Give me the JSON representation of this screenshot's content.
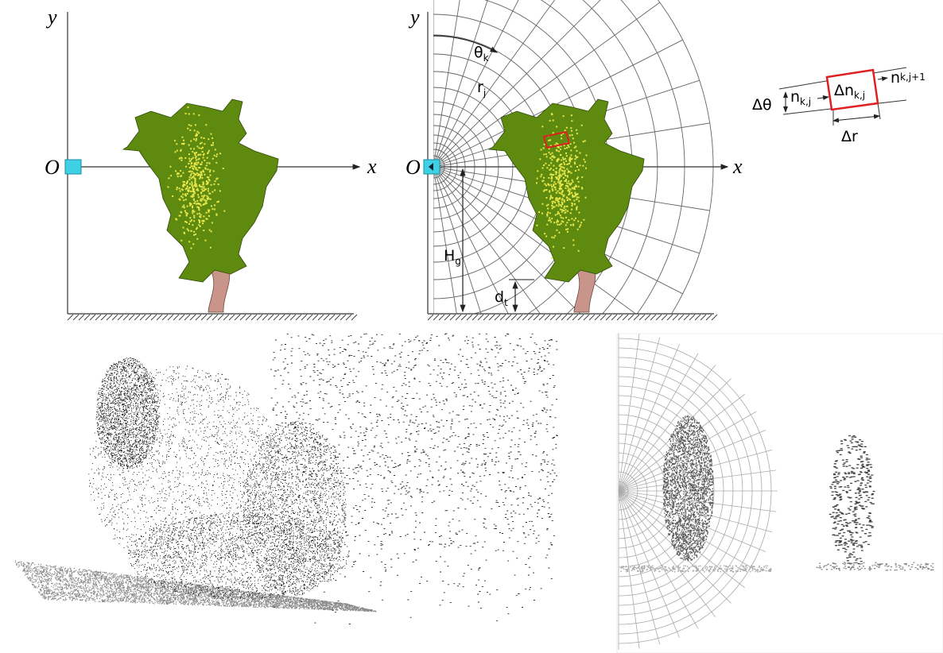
{
  "panel_a": {
    "axis_y": "y",
    "axis_x": "x",
    "origin": "O"
  },
  "panel_b": {
    "axis_y": "y",
    "axis_x": "x",
    "origin": "O",
    "theta": "θ",
    "theta_sub": "k",
    "r": "r",
    "r_sub": "j",
    "h": "H",
    "h_sub": "g",
    "d": "d",
    "d_sub": "t"
  },
  "cell": {
    "dtheta": "Δθ",
    "n": "n",
    "n_sub": "k,j",
    "dn": "Δn",
    "dn_sub": "k,j",
    "n_next_sub": "k,j+1",
    "dr": "Δr"
  }
}
